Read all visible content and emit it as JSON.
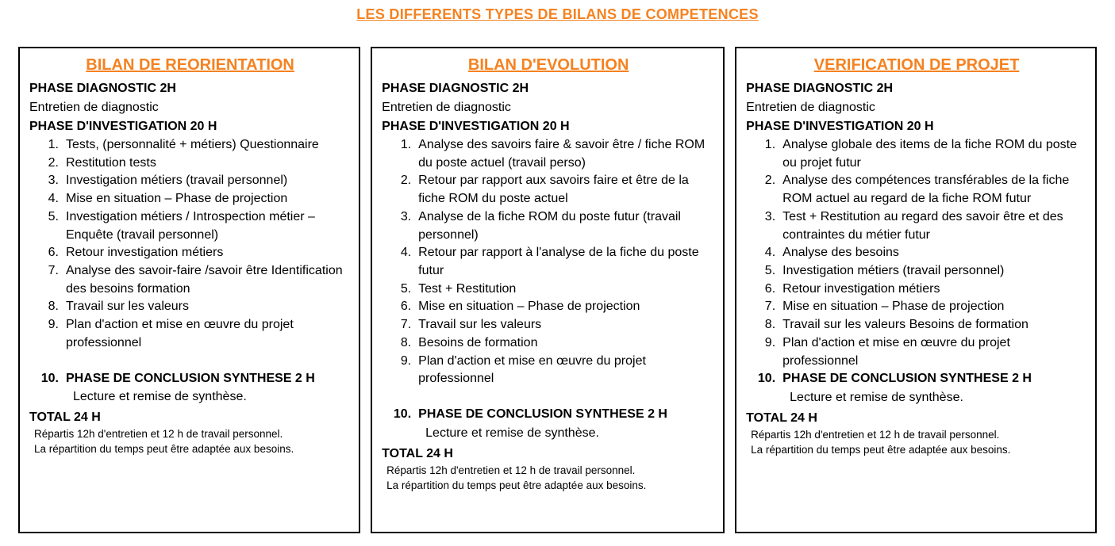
{
  "page": {
    "title": "LES DIFFERENTS TYPES DE BILANS DE COMPETENCES",
    "accent_color": "#F58220",
    "border_color": "#000000"
  },
  "columns": [
    {
      "heading": "BILAN DE REORIENTATION",
      "phase_diagnostic": "PHASE DIAGNOSTIC 2H",
      "diagnostic_detail": "Entretien de diagnostic",
      "phase_investigation": "PHASE D'INVESTIGATION 20 H",
      "items": [
        {
          "num": "1.",
          "text": "Tests, (personnalité + métiers) Questionnaire"
        },
        {
          "num": "2.",
          "text": "Restitution tests"
        },
        {
          "num": "3.",
          "text": "Investigation métiers (travail personnel)"
        },
        {
          "num": "4.",
          "text": "Mise en situation – Phase de projection"
        },
        {
          "num": "5.",
          "text": "Investigation métiers / Introspection métier – Enquête (travail personnel)"
        },
        {
          "num": "6.",
          "text": "Retour investigation métiers"
        },
        {
          "num": "7.",
          "text": "Analyse des savoir-faire /savoir être Identification des besoins formation"
        },
        {
          "num": "8.",
          "text": "Travail sur les valeurs"
        },
        {
          "num": "9.",
          "text": "Plan d'action et mise en œuvre du projet professionnel"
        }
      ],
      "conclusion": {
        "num": "10.",
        "text": "PHASE DE CONCLUSION SYNTHESE 2 H"
      },
      "conclusion_detail": "Lecture et remise de synthèse.",
      "total": "TOTAL 24 H",
      "footnotes": [
        "Répartis 12h d'entretien et 12 h de travail personnel.",
        "La répartition du temps peut être adaptée aux besoins."
      ]
    },
    {
      "heading": "BILAN D'EVOLUTION",
      "phase_diagnostic": "PHASE DIAGNOSTIC 2H",
      "diagnostic_detail": "Entretien de diagnostic",
      "phase_investigation": "PHASE D'INVESTIGATION 20 H",
      "items": [
        {
          "num": "1.",
          "text": "Analyse des savoirs faire & savoir être / fiche ROM du poste actuel (travail perso)"
        },
        {
          "num": "2.",
          "text": "Retour par rapport aux savoirs faire et être de la fiche ROM du poste actuel"
        },
        {
          "num": "3.",
          "text": "Analyse de la fiche ROM du poste futur (travail personnel)"
        },
        {
          "num": "4.",
          "text": "Retour par rapport à l'analyse de la fiche du poste futur"
        },
        {
          "num": "5.",
          "text": "Test + Restitution"
        },
        {
          "num": "6.",
          "text": "Mise en situation – Phase de projection"
        },
        {
          "num": "7.",
          "text": "Travail sur les valeurs"
        },
        {
          "num": "8.",
          "text": "Besoins de formation"
        },
        {
          "num": "9.",
          "text": "Plan d'action et mise en œuvre du projet professionnel"
        }
      ],
      "conclusion": {
        "num": "10.",
        "text": "PHASE DE CONCLUSION SYNTHESE 2 H"
      },
      "conclusion_detail": "Lecture et remise de synthèse.",
      "total": "TOTAL 24 H",
      "footnotes": [
        "Répartis 12h d'entretien et 12 h de travail personnel.",
        "La répartition du temps peut être adaptée aux besoins."
      ]
    },
    {
      "heading": "VERIFICATION DE PROJET",
      "phase_diagnostic": "PHASE DIAGNOSTIC 2H",
      "diagnostic_detail": "Entretien de diagnostic",
      "phase_investigation": "PHASE D'INVESTIGATION 20 H",
      "items": [
        {
          "num": "1.",
          "text": "Analyse globale des items de la fiche ROM du poste ou projet futur"
        },
        {
          "num": "2.",
          "text": "Analyse des compétences transférables de la fiche ROM actuel au regard de la fiche ROM futur"
        },
        {
          "num": "3.",
          "text": "Test + Restitution au regard des savoir être et des contraintes du métier futur"
        },
        {
          "num": "4.",
          "text": "Analyse des besoins"
        },
        {
          "num": "5.",
          "text": "Investigation métiers (travail personnel)"
        },
        {
          "num": "6.",
          "text": "Retour investigation métiers"
        },
        {
          "num": "7.",
          "text": "Mise en situation – Phase de projection"
        },
        {
          "num": "8.",
          "text": "Travail sur les valeurs Besoins de formation"
        },
        {
          "num": "9.",
          "text": "Plan d'action et mise en œuvre du projet professionnel"
        }
      ],
      "conclusion": {
        "num": "10.",
        "text": "PHASE DE CONCLUSION SYNTHESE 2 H"
      },
      "conclusion_detail": "Lecture et remise de synthèse.",
      "total": "TOTAL 24 H",
      "footnotes": [
        "Répartis 12h d'entretien et 12 h de travail personnel.",
        "La répartition du temps peut être adaptée aux besoins."
      ]
    }
  ]
}
